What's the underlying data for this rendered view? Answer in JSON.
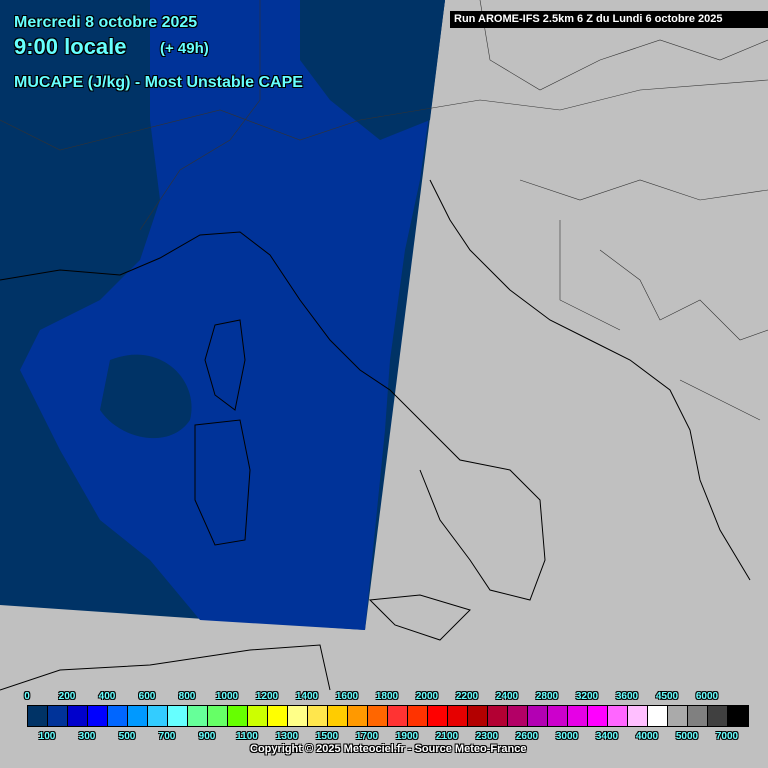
{
  "header": {
    "date": "Mercredi 8 octobre 2025",
    "time": "9:00 locale",
    "lead": "(+ 49h)",
    "parameter": "MUCAPE (J/kg) - Most Unstable CAPE",
    "run": "Run AROME-IFS 2.5km 6 Z du Lundi 6 octobre 2025"
  },
  "legend": {
    "colors": [
      "#003366",
      "#003399",
      "#0000cc",
      "#0000ff",
      "#0066ff",
      "#0099ff",
      "#33ccff",
      "#66ffff",
      "#66ff99",
      "#66ff66",
      "#66ff00",
      "#ccff00",
      "#ffff00",
      "#ffff88",
      "#ffe64d",
      "#ffcc00",
      "#ff9900",
      "#ff6600",
      "#ff3333",
      "#ff3300",
      "#ff0000",
      "#e60000",
      "#b30000",
      "#b30033",
      "#b30066",
      "#b300b3",
      "#cc00cc",
      "#e600e6",
      "#ff00ff",
      "#ff66ff",
      "#ffbfff",
      "#ffffff",
      "#aaaaaa",
      "#808080",
      "#404040",
      "#000000"
    ],
    "top_labels": [
      "0",
      "200",
      "400",
      "600",
      "800",
      "1000",
      "1200",
      "1400",
      "1600",
      "1800",
      "2000",
      "2200",
      "2400",
      "2800",
      "3200",
      "3600",
      "4500",
      "6000"
    ],
    "bottom_labels": [
      "100",
      "300",
      "500",
      "700",
      "900",
      "1100",
      "1300",
      "1500",
      "1700",
      "1900",
      "2100",
      "2300",
      "2600",
      "3000",
      "3400",
      "4000",
      "5000",
      "7000"
    ]
  },
  "copyright": "Copyright © 2025 Meteociel.fr - Source Meteo-France",
  "map": {
    "outside_domain_color": "#c0c0c0",
    "field_colors": [
      "#003366",
      "#003399"
    ]
  }
}
